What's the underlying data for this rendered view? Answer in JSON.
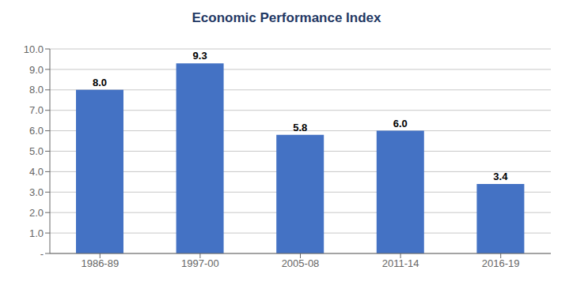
{
  "chart_data": {
    "type": "bar",
    "title": "Economic Performance Index",
    "categories": [
      "1986-89",
      "1997-00",
      "2005-08",
      "2011-14",
      "2016-19"
    ],
    "values": [
      8.0,
      9.3,
      5.8,
      6.0,
      3.4
    ],
    "value_labels": [
      "8.0",
      "9.3",
      "5.8",
      "6.0",
      "3.4"
    ],
    "data_labels": true,
    "color": "#4472C4",
    "ylim": [
      0,
      10
    ],
    "yticks": [
      {
        "value": 0,
        "label": "-"
      },
      {
        "value": 1.0,
        "label": "1.0"
      },
      {
        "value": 2.0,
        "label": "2.0"
      },
      {
        "value": 3.0,
        "label": "3.0"
      },
      {
        "value": 4.0,
        "label": "4.0"
      },
      {
        "value": 5.0,
        "label": "5.0"
      },
      {
        "value": 6.0,
        "label": "6.0"
      },
      {
        "value": 7.0,
        "label": "7.0"
      },
      {
        "value": 8.0,
        "label": "8.0"
      },
      {
        "value": 9.0,
        "label": "9.0"
      },
      {
        "value": 10.0,
        "label": "10.0"
      }
    ],
    "grid": true
  }
}
